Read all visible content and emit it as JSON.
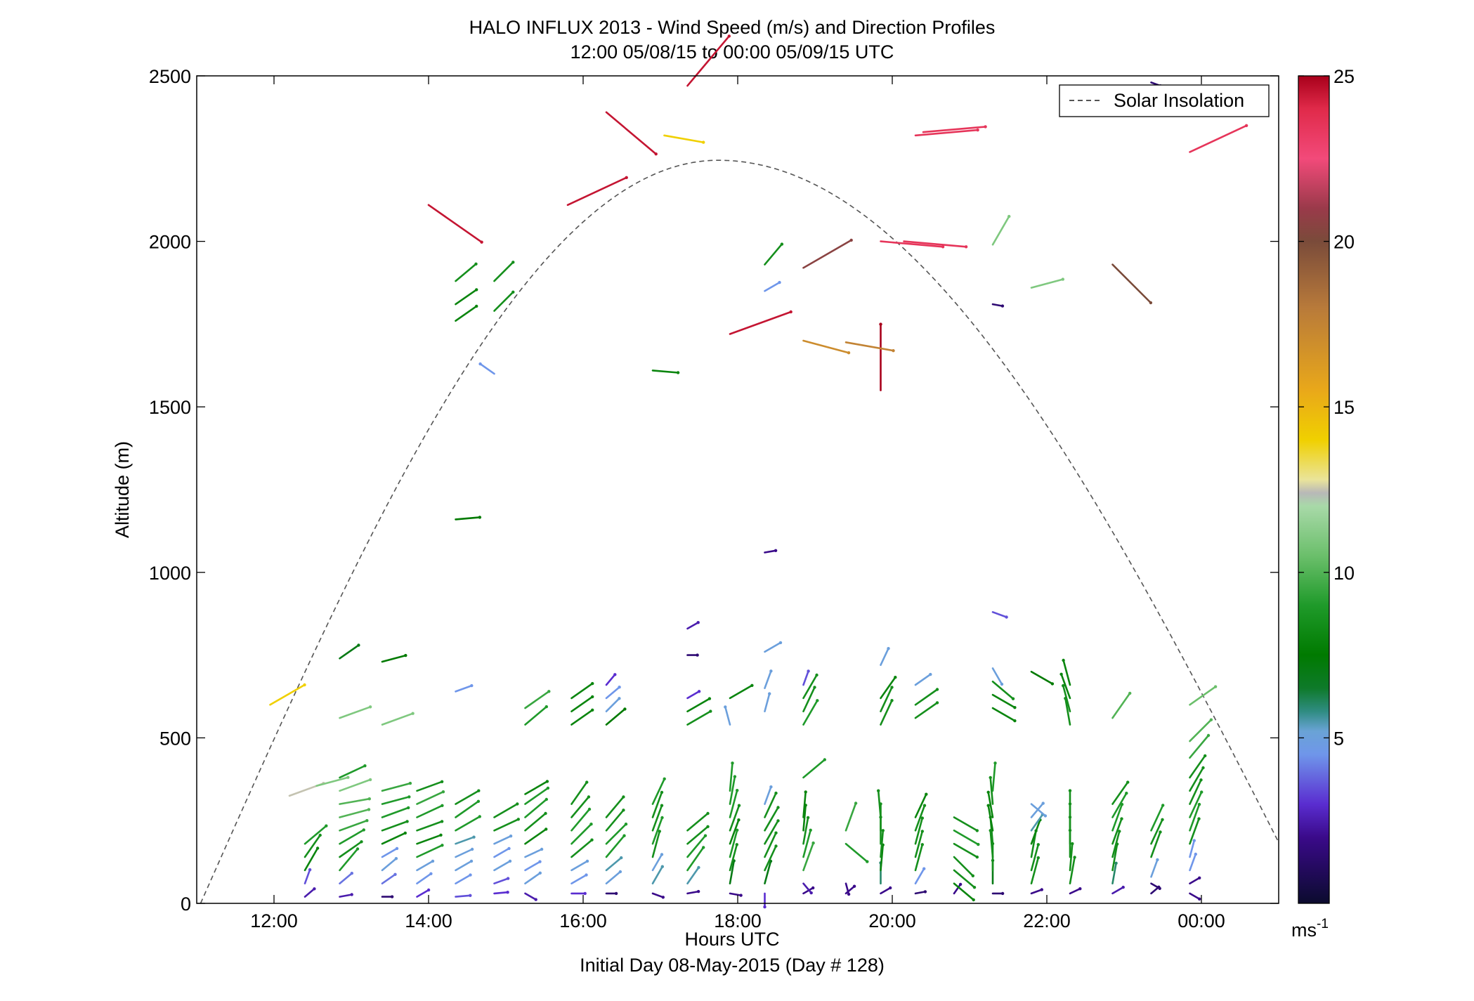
{
  "chart_data": {
    "type": "scatter",
    "variant": "wind-barb-profile",
    "title": "HALO INFLUX 2013 - Wind Speed (m/s) and Direction Profiles",
    "subtitle": "12:00 05/08/15 to 00:00 05/09/15  UTC",
    "xlabel": "Hours UTC",
    "xlabel_sub": "Initial Day 08-May-2015 (Day # 128)",
    "ylabel": "Altitude (m)",
    "xlim": [
      11.0,
      25.0
    ],
    "ylim": [
      0,
      2500
    ],
    "x_ticks": [
      {
        "value": 12,
        "label": "12:00"
      },
      {
        "value": 14,
        "label": "14:00"
      },
      {
        "value": 16,
        "label": "16:00"
      },
      {
        "value": 18,
        "label": "18:00"
      },
      {
        "value": 20,
        "label": "20:00"
      },
      {
        "value": 22,
        "label": "22:00"
      },
      {
        "value": 24,
        "label": "00:00"
      }
    ],
    "y_ticks": [
      {
        "value": 0,
        "label": "0"
      },
      {
        "value": 500,
        "label": "500"
      },
      {
        "value": 1000,
        "label": "1000"
      },
      {
        "value": 1500,
        "label": "1500"
      },
      {
        "value": 2000,
        "label": "2000"
      },
      {
        "value": 2500,
        "label": "2500"
      }
    ],
    "legend": {
      "entries": [
        {
          "name": "Solar Insolation",
          "style": "dashed",
          "color": "#555555"
        }
      ],
      "position": "top-right"
    },
    "colorbar": {
      "range": [
        0,
        25
      ],
      "ticks": [
        {
          "value": 5,
          "label": "5"
        },
        {
          "value": 10,
          "label": "10"
        },
        {
          "value": 15,
          "label": "15"
        },
        {
          "value": 20,
          "label": "20"
        },
        {
          "value": 25,
          "label": "25"
        }
      ],
      "unit_label": "ms",
      "unit_exponent": "-1",
      "stops": [
        {
          "v": 0,
          "c": "#0b0b2e"
        },
        {
          "v": 2,
          "c": "#3a0a8a"
        },
        {
          "v": 3,
          "c": "#5a2dd0"
        },
        {
          "v": 4.5,
          "c": "#6f96ea"
        },
        {
          "v": 5.2,
          "c": "#6aa3d6"
        },
        {
          "v": 5.8,
          "c": "#2f8c82"
        },
        {
          "v": 6.5,
          "c": "#0e7a2a"
        },
        {
          "v": 7.5,
          "c": "#007a00"
        },
        {
          "v": 9,
          "c": "#1f9a2a"
        },
        {
          "v": 10.5,
          "c": "#6bbf6b"
        },
        {
          "v": 12,
          "c": "#a8d9a8"
        },
        {
          "v": 12.4,
          "c": "#b8b8b8"
        },
        {
          "v": 12.8,
          "c": "#eae49a"
        },
        {
          "v": 14,
          "c": "#f0d000"
        },
        {
          "v": 15.5,
          "c": "#e9a81a"
        },
        {
          "v": 18,
          "c": "#b87a3a"
        },
        {
          "v": 20,
          "c": "#7a4b3a"
        },
        {
          "v": 21,
          "c": "#9a3a4a"
        },
        {
          "v": 22.5,
          "c": "#f24a7a"
        },
        {
          "v": 24,
          "c": "#e02a4a"
        },
        {
          "v": 25,
          "c": "#a8001a"
        }
      ]
    },
    "solar_curve": {
      "x_start": 11.05,
      "x_peak": 17.75,
      "x_end": 25.4,
      "peak_altitude": 2245
    },
    "profiles": [
      {
        "time": 12.4,
        "alt": [
          20,
          60,
          100,
          140,
          180
        ],
        "speed": [
          2.5,
          3.5,
          8,
          8.5,
          9
        ],
        "dir": [
          230,
          200,
          210,
          215,
          230
        ]
      },
      {
        "time": 12.85,
        "alt": [
          20,
          60,
          100,
          140,
          180,
          220,
          260,
          300,
          340,
          380,
          560,
          740
        ],
        "speed": [
          2.5,
          4,
          9,
          8.5,
          9,
          9.5,
          10,
          10,
          11,
          9,
          11,
          7
        ],
        "dir": [
          260,
          230,
          220,
          235,
          240,
          250,
          255,
          260,
          250,
          245,
          250,
          235
        ]
      },
      {
        "time": 13.4,
        "alt": [
          20,
          60,
          100,
          140,
          180,
          220,
          260,
          300,
          340,
          540,
          730
        ],
        "speed": [
          1.5,
          4,
          5,
          4.5,
          8,
          8.5,
          9,
          9,
          9.5,
          11,
          7.5
        ],
        "dir": [
          270,
          235,
          230,
          240,
          245,
          250,
          250,
          255,
          255,
          250,
          255
        ]
      },
      {
        "time": 13.85,
        "alt": [
          20,
          60,
          100,
          140,
          180,
          220,
          260,
          300,
          340
        ],
        "speed": [
          3,
          4.5,
          5,
          9,
          8,
          8.5,
          9,
          9.5,
          8.5
        ],
        "dir": [
          240,
          235,
          240,
          245,
          250,
          250,
          245,
          245,
          250
        ]
      },
      {
        "time": 14.35,
        "alt": [
          20,
          60,
          100,
          140,
          180,
          220,
          260,
          300,
          640,
          1160,
          1760,
          1810,
          1880
        ],
        "speed": [
          3.5,
          4.5,
          5,
          5,
          5.5,
          9,
          9,
          8.5,
          4.5,
          7.5,
          8,
          8,
          8.5
        ],
        "dir": [
          265,
          240,
          240,
          245,
          250,
          240,
          235,
          240,
          250,
          265,
          235,
          235,
          230
        ]
      },
      {
        "time": 14.85,
        "alt": [
          30,
          60,
          100,
          140,
          180,
          220,
          260,
          1600,
          1790,
          1880
        ],
        "speed": [
          3,
          3.5,
          5,
          4.5,
          5,
          8.5,
          8.5,
          4.5,
          8.5,
          8.5
        ],
        "dir": [
          265,
          250,
          240,
          240,
          245,
          245,
          240,
          125,
          225,
          225
        ]
      },
      {
        "time": 15.25,
        "alt": [
          30,
          60,
          100,
          140,
          180,
          220,
          260,
          300,
          330,
          540,
          590
        ],
        "speed": [
          2.5,
          5,
          4.5,
          5,
          8,
          8.5,
          9,
          9,
          8,
          9,
          9.5
        ],
        "dir": [
          300,
          235,
          240,
          245,
          235,
          230,
          230,
          235,
          240,
          230,
          235
        ]
      },
      {
        "time": 15.85,
        "alt": [
          30,
          60,
          100,
          140,
          180,
          220,
          260,
          300,
          540,
          580,
          620
        ],
        "speed": [
          3,
          4.5,
          5,
          8.5,
          9,
          9,
          8.5,
          8.5,
          8,
          8,
          8
        ],
        "dir": [
          270,
          240,
          240,
          230,
          225,
          220,
          220,
          215,
          235,
          235,
          235
        ]
      },
      {
        "time": 16.3,
        "alt": [
          30,
          60,
          100,
          140,
          180,
          220,
          260,
          540,
          580,
          620,
          660
        ],
        "speed": [
          1.5,
          5,
          5.5,
          9,
          9,
          8.5,
          8.5,
          7.5,
          5,
          4.5,
          3
        ],
        "dir": [
          270,
          230,
          230,
          220,
          225,
          220,
          220,
          230,
          225,
          230,
          220
        ]
      },
      {
        "time": 16.9,
        "alt": [
          30,
          60,
          100,
          140,
          180,
          220,
          260,
          300,
          1610
        ],
        "speed": [
          2,
          5.5,
          5,
          8.5,
          9,
          8.5,
          8.5,
          9,
          8
        ],
        "dir": [
          290,
          210,
          210,
          195,
          200,
          200,
          200,
          205,
          275
        ]
      },
      {
        "time": 17.35,
        "alt": [
          30,
          60,
          100,
          140,
          180,
          220,
          540,
          580,
          620,
          750,
          830,
          2470
        ],
        "speed": [
          2,
          5.5,
          9,
          9,
          8.5,
          8.5,
          8.5,
          8,
          3,
          1.5,
          2.5,
          24.5
        ],
        "dir": [
          260,
          215,
          215,
          220,
          230,
          230,
          240,
          240,
          240,
          270,
          240,
          220
        ]
      },
      {
        "time": 17.9,
        "alt": [
          30,
          60,
          100,
          140,
          180,
          220,
          260,
          300,
          340,
          540,
          620,
          1720
        ],
        "speed": [
          2,
          7,
          8.5,
          9,
          8,
          8.5,
          9,
          9,
          9,
          5,
          8,
          24.5
        ],
        "dir": [
          280,
          190,
          195,
          195,
          200,
          200,
          195,
          190,
          185,
          165,
          240,
          250
        ]
      },
      {
        "time": 18.35,
        "alt": [
          30,
          60,
          100,
          140,
          180,
          220,
          260,
          300,
          580,
          650,
          760,
          1060,
          1850,
          1930
        ],
        "speed": [
          3,
          7,
          8.5,
          8.5,
          8.5,
          8.5,
          8.5,
          5,
          5,
          5,
          5,
          2,
          4.5,
          8.5
        ],
        "dir": [
          0,
          195,
          205,
          205,
          210,
          210,
          205,
          200,
          195,
          200,
          240,
          260,
          240,
          220
        ]
      },
      {
        "time": 18.85,
        "alt": [
          30,
          60,
          100,
          140,
          180,
          220,
          260,
          380,
          540,
          580,
          620,
          660,
          1700,
          1920
        ],
        "speed": [
          2,
          2.5,
          9.5,
          9,
          8.5,
          8,
          8,
          9,
          9,
          8.5,
          8.5,
          3.5,
          17,
          20.5
        ],
        "dir": [
          240,
          320,
          200,
          195,
          190,
          185,
          185,
          230,
          210,
          205,
          210,
          200,
          285,
          240
        ]
      },
      {
        "time": 19.4,
        "alt": [
          30,
          60,
          180,
          220
        ],
        "speed": [
          2,
          2,
          9,
          9.5
        ],
        "dir": [
          230,
          345,
          310,
          200
        ]
      },
      {
        "time": 19.85,
        "alt": [
          30,
          60,
          100,
          140,
          180,
          220,
          260,
          540,
          580,
          620,
          720,
          1550,
          2000
        ],
        "speed": [
          2,
          6,
          8,
          8.5,
          8.5,
          8.5,
          8.5,
          8.5,
          8.5,
          8,
          5,
          25,
          23.5
        ],
        "dir": [
          240,
          180,
          185,
          185,
          180,
          180,
          175,
          205,
          205,
          215,
          205,
          180,
          275
        ]
      },
      {
        "time": 20.3,
        "alt": [
          30,
          60,
          100,
          140,
          180,
          220,
          260,
          560,
          600,
          660,
          2320
        ],
        "speed": [
          1.5,
          4.5,
          8.5,
          8.5,
          8.5,
          8.5,
          8,
          8.5,
          8.5,
          5,
          23.5
        ],
        "dir": [
          260,
          210,
          195,
          195,
          195,
          200,
          205,
          235,
          235,
          235,
          265
        ]
      },
      {
        "time": 20.8,
        "alt": [
          30,
          60,
          100,
          140,
          180,
          220,
          260
        ],
        "speed": [
          2,
          8,
          8.5,
          8.5,
          8.5,
          9,
          8.5
        ],
        "dir": [
          215,
          310,
          310,
          315,
          300,
          300,
          300
        ]
      },
      {
        "time": 21.3,
        "alt": [
          30,
          60,
          100,
          140,
          180,
          220,
          260,
          300,
          340,
          590,
          630,
          670,
          710,
          880,
          1810,
          1990
        ],
        "speed": [
          1.5,
          7,
          8.5,
          8.5,
          8.5,
          8,
          8,
          8.5,
          9,
          8,
          8,
          8.5,
          5,
          3.5,
          1.5,
          11
        ],
        "dir": [
          270,
          180,
          180,
          175,
          175,
          170,
          170,
          175,
          185,
          300,
          300,
          310,
          330,
          290,
          280,
          210
        ]
      },
      {
        "time": 21.8,
        "alt": [
          30,
          60,
          100,
          140,
          180,
          220,
          260,
          300,
          700,
          1860
        ],
        "speed": [
          2,
          8.5,
          8.5,
          8.5,
          8,
          5.5,
          5,
          5,
          7.5,
          11
        ],
        "dir": [
          250,
          195,
          195,
          190,
          200,
          215,
          220,
          310,
          300,
          255
        ]
      },
      {
        "time": 22.3,
        "alt": [
          30,
          60,
          100,
          140,
          180,
          220,
          260,
          540,
          580,
          620,
          660
        ],
        "speed": [
          2,
          8.5,
          8.5,
          8.5,
          8.5,
          8.5,
          8.5,
          8.5,
          8.5,
          8,
          8
        ],
        "dir": [
          245,
          190,
          185,
          180,
          180,
          180,
          180,
          170,
          165,
          160,
          165
        ]
      },
      {
        "time": 22.85,
        "alt": [
          30,
          60,
          100,
          140,
          180,
          220,
          260,
          300,
          560,
          1930
        ],
        "speed": [
          2.5,
          6,
          8.5,
          8.5,
          8.5,
          9,
          9,
          8.5,
          10,
          20
        ],
        "dir": [
          240,
          190,
          190,
          195,
          200,
          200,
          210,
          215,
          215,
          315
        ]
      },
      {
        "time": 23.35,
        "alt": [
          30,
          60,
          80,
          140,
          180,
          220,
          2480
        ],
        "speed": [
          1.5,
          1.5,
          5,
          8.5,
          8.5,
          9,
          1.5
        ],
        "dir": [
          230,
          300,
          200,
          200,
          205,
          205,
          290
        ]
      },
      {
        "time": 23.85,
        "alt": [
          30,
          60,
          100,
          140,
          180,
          220,
          260,
          300,
          340,
          380,
          440,
          490,
          600,
          2270
        ],
        "speed": [
          2,
          2,
          4.5,
          4.5,
          8.5,
          9,
          9,
          8.5,
          8.5,
          8.5,
          9.5,
          10,
          10.5,
          23.5
        ],
        "dir": [
          300,
          240,
          200,
          195,
          200,
          200,
          205,
          205,
          210,
          215,
          220,
          225,
          235,
          245
        ]
      }
    ],
    "isolated_vectors": [
      {
        "time": 11.95,
        "alt": 600,
        "speed": 14,
        "dir": 240
      },
      {
        "time": 12.2,
        "alt": 325,
        "speed": 12.5,
        "dir": 250
      },
      {
        "time": 12.55,
        "alt": 355,
        "speed": 11,
        "dir": 255
      },
      {
        "time": 14.0,
        "alt": 2110,
        "speed": 24.5,
        "dir": 305
      },
      {
        "time": 15.8,
        "alt": 2110,
        "speed": 24.5,
        "dir": 245
      },
      {
        "time": 16.3,
        "alt": 2390,
        "speed": 24.5,
        "dir": 310
      },
      {
        "time": 17.05,
        "alt": 2320,
        "speed": 14,
        "dir": 280
      },
      {
        "time": 19.4,
        "alt": 1695,
        "speed": 17.5,
        "dir": 280
      },
      {
        "time": 20.4,
        "alt": 2330,
        "speed": 23.5,
        "dir": 265
      },
      {
        "time": 20.15,
        "alt": 2000,
        "speed": 23.5,
        "dir": 275
      }
    ]
  }
}
